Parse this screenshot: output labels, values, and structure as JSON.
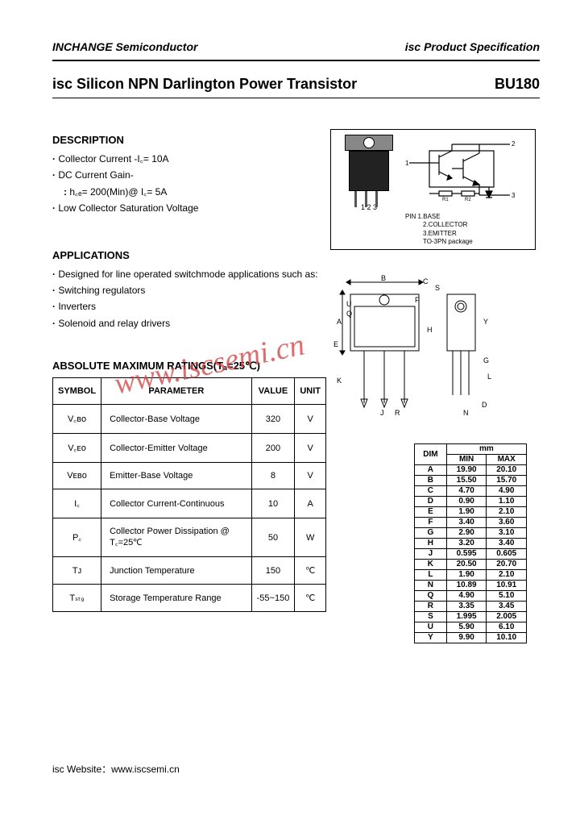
{
  "header": {
    "left": "INCHANGE Semiconductor",
    "right": "isc Product Specification"
  },
  "title": {
    "left": "isc Silicon NPN Darlington Power Transistor",
    "right": "BU180"
  },
  "description": {
    "heading": "DESCRIPTION",
    "items": [
      "Collector Current -I꜀= 10A",
      "DC Current Gain-",
      "h꜀ₑ= 200(Min)@ I꜀= 5A",
      "Low Collector Saturation Voltage"
    ]
  },
  "applications": {
    "heading": "APPLICATIONS",
    "intro": "Designed for line operated switchmode applications such as:",
    "items": [
      "Switching regulators",
      "Inverters",
      "Solenoid and relay drivers"
    ]
  },
  "ratings": {
    "heading": "ABSOLUTE MAXIMUM RATINGS(Tₐ=25℃)",
    "columns": [
      "SYMBOL",
      "PARAMETER",
      "VALUE",
      "UNIT"
    ],
    "rows": [
      {
        "symbol": "V꜀ʙᴏ",
        "param": "Collector-Base Voltage",
        "value": "320",
        "unit": "V"
      },
      {
        "symbol": "V꜀ᴇᴏ",
        "param": "Collector-Emitter Voltage",
        "value": "200",
        "unit": "V"
      },
      {
        "symbol": "Vᴇʙᴏ",
        "param": "Emitter-Base Voltage",
        "value": "8",
        "unit": "V"
      },
      {
        "symbol": "I꜀",
        "param": "Collector Current-Continuous",
        "value": "10",
        "unit": "A"
      },
      {
        "symbol": "P꜀",
        "param": "Collector Power Dissipation @ T꜀=25℃",
        "value": "50",
        "unit": "W"
      },
      {
        "symbol": "Tᴊ",
        "param": "Junction Temperature",
        "value": "150",
        "unit": "℃"
      },
      {
        "symbol": "Tₛₜ₉",
        "param": "Storage Temperature Range",
        "value": "-55~150",
        "unit": "℃"
      }
    ]
  },
  "pinout": {
    "numbers": "1   2   3",
    "labels": [
      "PIN 1.BASE",
      "2.COLLECTOR",
      "3.EMITTER",
      "TO-3PN package"
    ]
  },
  "dimensions": {
    "header": [
      "DIM",
      "MIN",
      "MAX"
    ],
    "unit": "mm",
    "rows": [
      [
        "A",
        "19.90",
        "20.10"
      ],
      [
        "B",
        "15.50",
        "15.70"
      ],
      [
        "C",
        "4.70",
        "4.90"
      ],
      [
        "D",
        "0.90",
        "1.10"
      ],
      [
        "E",
        "1.90",
        "2.10"
      ],
      [
        "F",
        "3.40",
        "3.60"
      ],
      [
        "G",
        "2.90",
        "3.10"
      ],
      [
        "H",
        "3.20",
        "3.40"
      ],
      [
        "J",
        "0.595",
        "0.605"
      ],
      [
        "K",
        "20.50",
        "20.70"
      ],
      [
        "L",
        "1.90",
        "2.10"
      ],
      [
        "N",
        "10.89",
        "10.91"
      ],
      [
        "Q",
        "4.90",
        "5.10"
      ],
      [
        "R",
        "3.35",
        "3.45"
      ],
      [
        "S",
        "1.995",
        "2.005"
      ],
      [
        "U",
        "5.90",
        "6.10"
      ],
      [
        "Y",
        "9.90",
        "10.10"
      ]
    ]
  },
  "watermark": "www.iscsemi.cn",
  "footer": "isc Website：www.iscsemi.cn"
}
